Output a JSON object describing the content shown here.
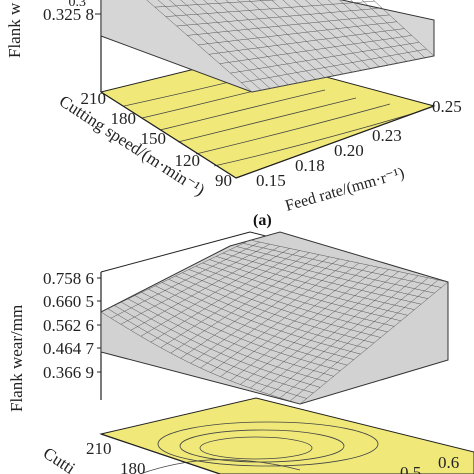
{
  "chart_data": [
    {
      "panel_label": "(a)",
      "type": "surface3d",
      "zlabel": "Flank wear/mm",
      "zlabel_visible": "Flank w",
      "z_ticks_visible": [
        "0.325 8"
      ],
      "z_tick_partial": "0.3",
      "xlabel": "Cutting speed/(m·min⁻¹)",
      "x_ticks": [
        "90",
        "120",
        "150",
        "180",
        "210"
      ],
      "ylabel": "Feed rate/(mm·r⁻¹)",
      "y_ticks": [
        "0.15",
        "0.18",
        "0.20",
        "0.23",
        "0.25"
      ],
      "surface_color": "#d9d9d9",
      "contour_color": "#f0e97a"
    },
    {
      "type": "surface3d",
      "zlabel": "Flank wear/mm",
      "z_ticks": [
        "0.366 9",
        "0.464 7",
        "0.562 6",
        "0.660 5",
        "0.758 6"
      ],
      "xlabel_visible": "Cutti",
      "x_ticks_visible": [
        "210",
        "180"
      ],
      "y_ticks_visible": [
        "0.6",
        "0.5"
      ],
      "surface_color": "#d9d9d9",
      "contour_color": "#f0e97a"
    }
  ]
}
